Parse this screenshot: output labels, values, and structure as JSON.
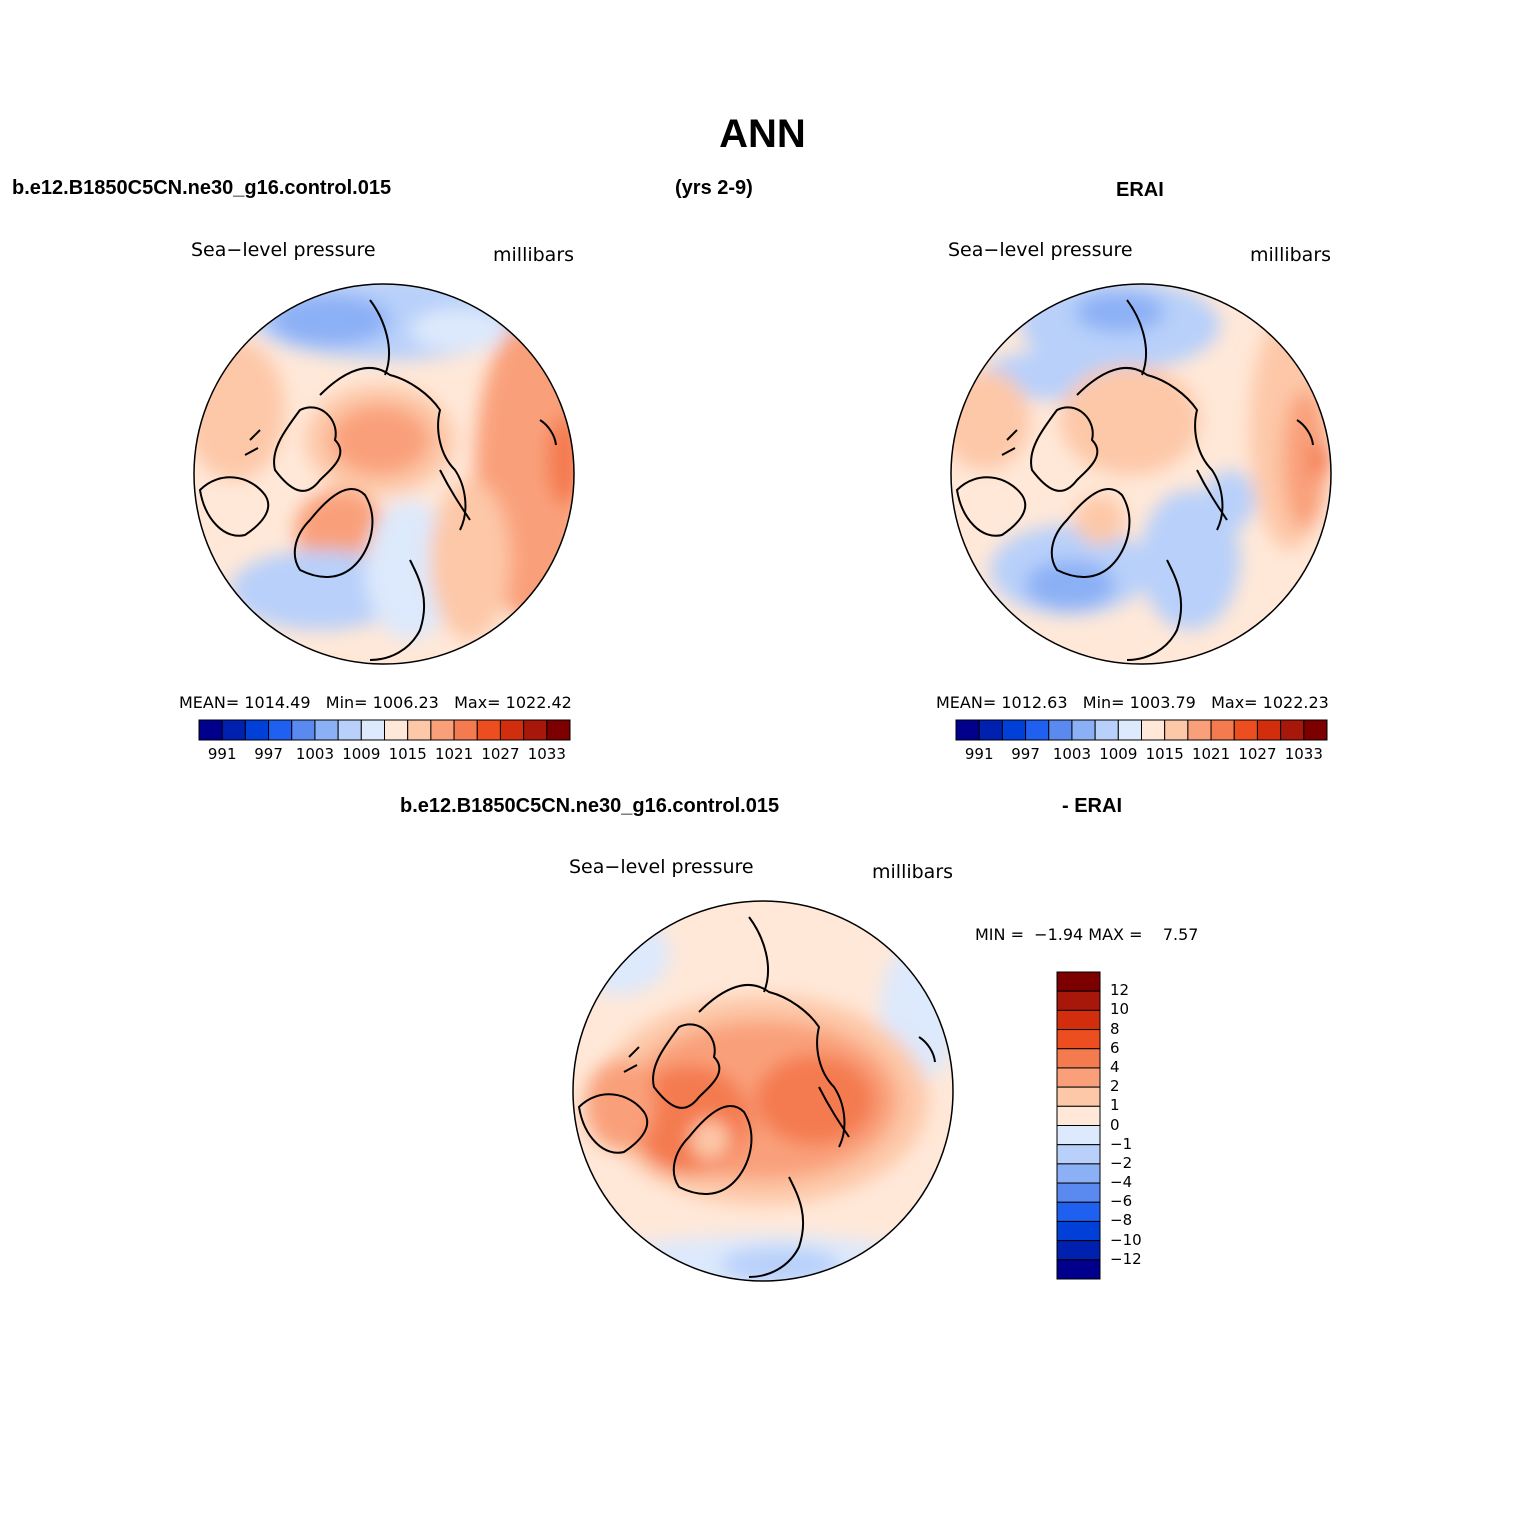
{
  "figure": {
    "title": "ANN",
    "case_name": "b.e12.B1850C5CN.ne30_g16.control.015",
    "years": "(yrs 2-9)",
    "obs_name": "ERAI",
    "diff_case_name": "b.e12.B1850C5CN.ne30_g16.control.015",
    "diff_obs_name": "- ERAI"
  },
  "panels": {
    "model": {
      "variable": "Sea−level pressure",
      "units": "millibars",
      "mean_label": "MEAN=",
      "mean_value": "1014.49",
      "min_label": "Min=",
      "min_value": "1006.23",
      "max_label": "Max=",
      "max_value": "1022.42"
    },
    "obs": {
      "variable": "Sea−level pressure",
      "units": "millibars",
      "mean_label": "MEAN=",
      "mean_value": "1012.63",
      "min_label": "Min=",
      "min_value": "1003.79",
      "max_label": "Max=",
      "max_value": "1022.23"
    },
    "diff": {
      "variable": "Sea−level pressure",
      "units": "millibars",
      "min_label": "MIN =",
      "min_value": "−1.94",
      "max_label": "MAX =",
      "max_value": "7.57"
    }
  },
  "colorbars": {
    "abs_colors": [
      "#00008c",
      "#0020b0",
      "#0040d8",
      "#2060f0",
      "#5a8af0",
      "#8cb0f5",
      "#b8d0fa",
      "#dde9fc",
      "#ffe8d8",
      "#fdc8a8",
      "#f9a07a",
      "#f47a4f",
      "#ec4e20",
      "#d22e0e",
      "#a8180a",
      "#7d0000"
    ],
    "abs_ticks": [
      "991",
      "997",
      "1003",
      "1009",
      "1015",
      "1021",
      "1027",
      "1033"
    ],
    "diff_colors_top_to_bottom": [
      "#7d0000",
      "#a8180a",
      "#d22e0e",
      "#ec4e20",
      "#f47a4f",
      "#f9a07a",
      "#fdc8a8",
      "#ffe8d8",
      "#dde9fc",
      "#b8d0fa",
      "#8cb0f5",
      "#5a8af0",
      "#2060f0",
      "#0040d8",
      "#0020b0",
      "#00008c"
    ],
    "diff_ticks": [
      "12",
      "10",
      "8",
      "6",
      "4",
      "2",
      "1",
      "0",
      "−1",
      "−2",
      "−4",
      "−6",
      "−8",
      "−10",
      "−12"
    ]
  }
}
